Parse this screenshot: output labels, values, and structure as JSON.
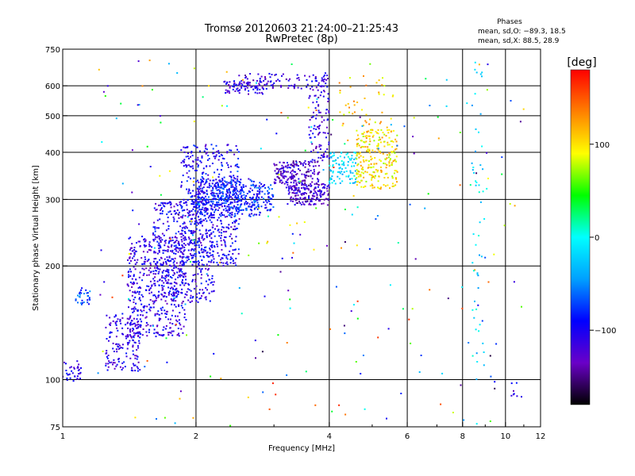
{
  "chart_data": {
    "type": "scatter",
    "title": "Tromsø 20120603 21:24:00–21:25:43",
    "subtitle": "RwPretec (8p)",
    "xlabel": "Frequency [MHz]",
    "ylabel": "Stationary phase Virtual Height [km]",
    "x_scale": "log",
    "y_scale": "log",
    "xlim": [
      1,
      12
    ],
    "ylim": [
      75,
      750
    ],
    "x_ticks": [
      1,
      2,
      4,
      6,
      8,
      10,
      12
    ],
    "y_ticks": [
      75,
      100,
      200,
      300,
      400,
      500,
      600,
      750
    ],
    "grid": true,
    "phases_box": {
      "heading": "Phases",
      "line1": "mean, sd,O: −89.3, 18.5",
      "line2": "mean, sd,X:  88.5, 28.9"
    },
    "colorbar": {
      "label": "[deg]",
      "range": [
        -180,
        180
      ],
      "ticks": [
        {
          "value": 100,
          "label": "100"
        },
        {
          "value": 0,
          "label": "0"
        },
        {
          "value": -100,
          "label": "−100"
        }
      ],
      "stops": [
        "#000000",
        "#6a00c8",
        "#0000ff",
        "#00a0ff",
        "#00ffff",
        "#00ff00",
        "#ffff00",
        "#ff8000",
        "#ff0000"
      ]
    },
    "clusters": [
      {
        "f": [
          1.0,
          1.1
        ],
        "h": [
          98,
          112
        ],
        "phase": -105,
        "count": 35
      },
      {
        "f": [
          1.07,
          1.17
        ],
        "h": [
          158,
          175
        ],
        "phase": -75,
        "count": 30
      },
      {
        "f": [
          1.25,
          1.5
        ],
        "h": [
          105,
          150
        ],
        "phase": -110,
        "count": 160
      },
      {
        "f": [
          1.4,
          1.9
        ],
        "h": [
          130,
          240
        ],
        "phase": -110,
        "count": 500
      },
      {
        "f": [
          1.6,
          2.2
        ],
        "h": [
          160,
          300
        ],
        "phase": -105,
        "count": 380
      },
      {
        "f": [
          1.85,
          2.5
        ],
        "h": [
          200,
          420
        ],
        "phase": -100,
        "count": 520
      },
      {
        "f": [
          2.0,
          2.8
        ],
        "h": [
          270,
          340
        ],
        "phase": -90,
        "count": 320
      },
      {
        "f": [
          2.2,
          3.0
        ],
        "h": [
          280,
          330
        ],
        "phase": -80,
        "count": 140
      },
      {
        "f": [
          2.3,
          2.9
        ],
        "h": [
          570,
          620
        ],
        "phase": -110,
        "count": 70
      },
      {
        "f": [
          2.5,
          4.0
        ],
        "h": [
          590,
          650
        ],
        "phase": -115,
        "count": 90
      },
      {
        "f": [
          3.0,
          3.8
        ],
        "h": [
          330,
          380
        ],
        "phase": -125,
        "count": 170
      },
      {
        "f": [
          3.2,
          4.0
        ],
        "h": [
          290,
          330
        ],
        "phase": -125,
        "count": 180
      },
      {
        "f": [
          3.6,
          4.0
        ],
        "h": [
          380,
          640
        ],
        "phase": -115,
        "count": 110
      },
      {
        "f": [
          4.0,
          4.6
        ],
        "h": [
          330,
          400
        ],
        "phase": -20,
        "count": 90
      },
      {
        "f": [
          4.6,
          5.7
        ],
        "h": [
          320,
          460
        ],
        "phase": 100,
        "count": 240
      },
      {
        "f": [
          4.2,
          5.6
        ],
        "h": [
          450,
          640
        ],
        "phase": 110,
        "count": 50
      },
      {
        "f": [
          1.2,
          11.0
        ],
        "h": [
          75,
          720
        ],
        "phase": 0,
        "count": 260
      },
      {
        "f": [
          8.4,
          9.0
        ],
        "h": [
          100,
          700
        ],
        "phase": -20,
        "count": 50
      },
      {
        "f": [
          10.3,
          11.0
        ],
        "h": [
          90,
          100
        ],
        "phase": -110,
        "count": 8
      }
    ]
  }
}
